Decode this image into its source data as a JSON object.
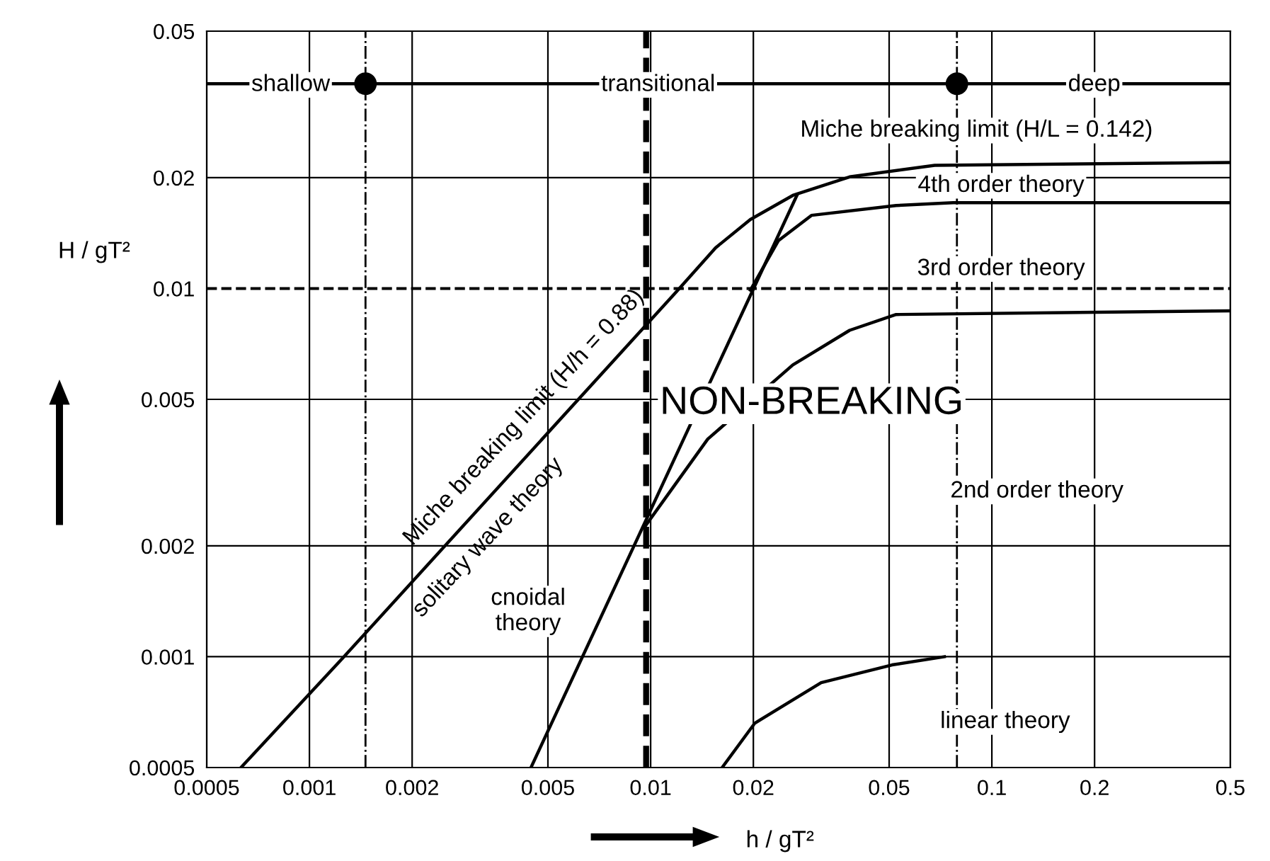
{
  "chart_data": {
    "type": "line",
    "xlabel": "h / gT²",
    "ylabel": "H / gT²",
    "log": "xy",
    "xlim": [
      0.0005,
      0.5
    ],
    "ylim": [
      0.0005,
      0.05
    ],
    "xticks": [
      0.0005,
      0.001,
      0.002,
      0.005,
      0.01,
      0.02,
      0.05,
      0.1,
      0.2,
      0.5
    ],
    "yticks": [
      0.0005,
      0.001,
      0.002,
      0.005,
      0.01,
      0.02,
      0.05
    ],
    "grid": true,
    "legend": false,
    "marker": "none",
    "line_style": "solid",
    "series": [
      {
        "color": "#000000",
        "x": [
          0.00063,
          0.00125,
          0.0119,
          0.0155,
          0.0196,
          0.0261,
          0.0383,
          0.068,
          0.5
        ],
        "values": [
          0.0005,
          0.00099,
          0.0098,
          0.0129,
          0.0154,
          0.0179,
          0.0201,
          0.0216,
          0.022
        ]
      },
      {
        "color": "#000000",
        "x": [
          0.00446,
          0.0269
        ],
        "values": [
          0.0005,
          0.018
        ]
      },
      {
        "color": "#000000",
        "x": [
          0.0196,
          0.0237,
          0.0296,
          0.0524,
          0.077,
          0.5
        ],
        "values": [
          0.0099,
          0.0135,
          0.0158,
          0.0168,
          0.0171,
          0.0171
        ]
      },
      {
        "color": "#000000",
        "x": [
          0.0096,
          0.0147,
          0.0261,
          0.0383,
          0.0524,
          0.5
        ],
        "values": [
          0.00225,
          0.0039,
          0.0062,
          0.0077,
          0.0085,
          0.0087
        ]
      },
      {
        "color": "#000000",
        "x": [
          0.0162,
          0.0202,
          0.0316,
          0.051,
          0.0726
        ],
        "values": [
          0.0005,
          0.00066,
          0.00085,
          0.00095,
          0.001
        ]
      },
      {
        "color": "#000000",
        "x": [
          0.0005,
          0.5
        ],
        "values": [
          0.036,
          0.036
        ]
      },
      {
        "type": "scatter",
        "marker": "circle",
        "color": "#000000",
        "x": [
          0.00146,
          0.079
        ],
        "values": [
          0.036,
          0.036
        ]
      }
    ],
    "ref_lines": [
      {
        "axis": "y",
        "value": 0.01,
        "line_style": "dashed",
        "color": "#000000"
      },
      {
        "axis": "x",
        "value": 0.0097,
        "line_style": "dashed",
        "color": "#000000"
      },
      {
        "axis": "x",
        "value": 0.00146,
        "line_style": "dashdot",
        "color": "#000000"
      },
      {
        "axis": "x",
        "value": 0.079,
        "line_style": "dashdot",
        "color": "#000000"
      }
    ],
    "annotations": [
      "Miche breaking limit (H/h = 0.88)",
      "solitary wave theory",
      "shallow",
      "transitional",
      "deep",
      "Miche breaking limit (H/L = 0.142)",
      "4th order theory",
      "3rd order theory",
      "NON-BREAKING",
      "2nd order theory",
      "cnoidal\ntheory",
      "linear theory"
    ]
  }
}
